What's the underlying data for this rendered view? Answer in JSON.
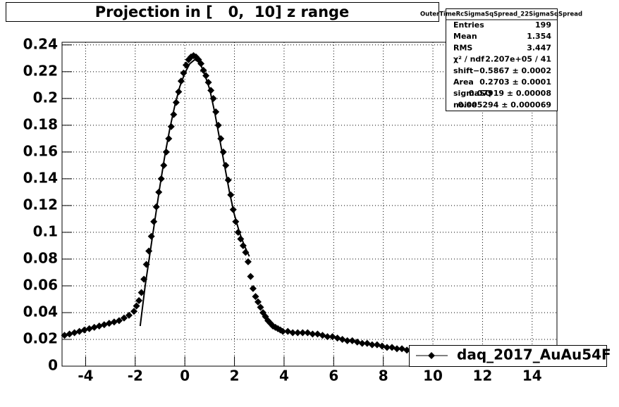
{
  "chart_data": {
    "type": "scatter",
    "title": "Projection in [   0,  10] z range",
    "xlim": [
      -4.95,
      15
    ],
    "ylim": [
      0,
      0.242
    ],
    "xticks": [
      -4,
      -2,
      0,
      2,
      4,
      6,
      8,
      10,
      12,
      14
    ],
    "yticks": [
      0,
      0.02,
      0.04,
      0.06,
      0.08,
      0.1,
      0.12,
      0.14,
      0.16,
      0.18,
      0.2,
      0.22,
      0.24
    ],
    "grid": true,
    "legend": "bottom-right",
    "series": [
      {
        "name": "daq_2017_AuAu54F",
        "color": "#000000",
        "kind": "markers",
        "x": [
          -4.85,
          -4.65,
          -4.45,
          -4.25,
          -4.05,
          -3.85,
          -3.65,
          -3.45,
          -3.25,
          -3.05,
          -2.85,
          -2.65,
          -2.45,
          -2.25,
          -2.05,
          -1.95,
          -1.85,
          -1.75,
          -1.65,
          -1.55,
          -1.45,
          -1.35,
          -1.25,
          -1.15,
          -1.05,
          -0.95,
          -0.85,
          -0.75,
          -0.65,
          -0.55,
          -0.45,
          -0.35,
          -0.25,
          -0.15,
          -0.05,
          0.05,
          0.15,
          0.25,
          0.35,
          0.45,
          0.55,
          0.65,
          0.75,
          0.85,
          0.95,
          1.05,
          1.15,
          1.25,
          1.35,
          1.45,
          1.55,
          1.65,
          1.75,
          1.85,
          1.95,
          2.05,
          2.15,
          2.25,
          2.35,
          2.45,
          2.55,
          2.65,
          2.75,
          2.85,
          2.95,
          3.05,
          3.15,
          3.25,
          3.35,
          3.45,
          3.55,
          3.65,
          3.75,
          3.85,
          3.95,
          4.15,
          4.35,
          4.55,
          4.75,
          4.95,
          5.15,
          5.35,
          5.55,
          5.75,
          5.95,
          6.15,
          6.35,
          6.55,
          6.75,
          6.95,
          7.15,
          7.35,
          7.55,
          7.75,
          7.95,
          8.15,
          8.35,
          8.55,
          8.75,
          8.95,
          9.15
        ],
        "values": [
          0.023,
          0.024,
          0.025,
          0.026,
          0.027,
          0.028,
          0.029,
          0.03,
          0.031,
          0.032,
          0.033,
          0.034,
          0.036,
          0.038,
          0.041,
          0.045,
          0.049,
          0.055,
          0.065,
          0.076,
          0.086,
          0.097,
          0.108,
          0.119,
          0.13,
          0.14,
          0.15,
          0.16,
          0.17,
          0.179,
          0.188,
          0.197,
          0.205,
          0.213,
          0.219,
          0.225,
          0.229,
          0.231,
          0.232,
          0.231,
          0.229,
          0.226,
          0.221,
          0.217,
          0.212,
          0.206,
          0.2,
          0.19,
          0.18,
          0.17,
          0.16,
          0.15,
          0.139,
          0.128,
          0.117,
          0.108,
          0.1,
          0.095,
          0.09,
          0.085,
          0.078,
          0.067,
          0.058,
          0.052,
          0.048,
          0.044,
          0.04,
          0.037,
          0.034,
          0.032,
          0.03,
          0.029,
          0.028,
          0.027,
          0.026,
          0.026,
          0.025,
          0.025,
          0.025,
          0.025,
          0.024,
          0.024,
          0.023,
          0.022,
          0.022,
          0.021,
          0.02,
          0.019,
          0.019,
          0.018,
          0.017,
          0.017,
          0.016,
          0.016,
          0.015,
          0.014,
          0.014,
          0.013,
          0.013,
          0.012,
          0.012
        ]
      },
      {
        "color": "#000000",
        "kind": "line",
        "x": [
          -1.8,
          -1.6,
          -1.4,
          -1.2,
          -1.0,
          -0.8,
          -0.6,
          -0.4,
          -0.2,
          0,
          0.2,
          0.4,
          0.6,
          0.8,
          1.0,
          1.2,
          1.4,
          1.6,
          1.8,
          2.0,
          2.2,
          2.4,
          2.6
        ],
        "values": [
          0.03,
          0.06,
          0.085,
          0.11,
          0.135,
          0.158,
          0.178,
          0.195,
          0.209,
          0.219,
          0.226,
          0.229,
          0.227,
          0.218,
          0.207,
          0.19,
          0.17,
          0.15,
          0.13,
          0.113,
          0.1,
          0.09,
          0.082
        ]
      }
    ],
    "stats": {
      "title": "OuterTimeRcSigmaSqSpread_22SigmaSqSpread",
      "rows": [
        {
          "label": "Entries",
          "value": "199"
        },
        {
          "label": "Mean",
          "value": "1.354"
        },
        {
          "label": "RMS",
          "value": "3.447"
        },
        {
          "label": "χ² / ndf",
          "value": "2.207e+05 / 41"
        },
        {
          "label": "shift",
          "value": "−0.5867 ± 0.0002"
        },
        {
          "label": "Area",
          "value": "0.2703 ± 0.0001"
        },
        {
          "label": "sigmaSQ",
          "value": "0.07919 ± 0.00008"
        },
        {
          "label": "noise",
          "value": "0.005294 ± 0.000069"
        }
      ]
    }
  }
}
